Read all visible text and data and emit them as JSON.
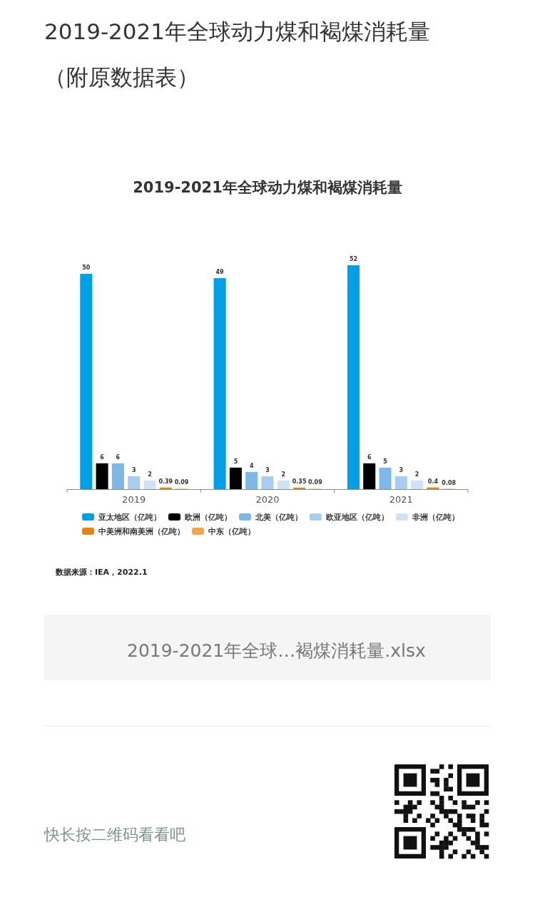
{
  "chart_data": {
    "type": "bar",
    "title": "2019-2021年全球动力煤和褐煤消耗量",
    "categories": [
      "2019",
      "2020",
      "2021"
    ],
    "series": [
      {
        "name": "亚太地区（亿吨）",
        "color": "#00a0e9",
        "values": [
          50,
          49,
          52
        ]
      },
      {
        "name": "欧洲（亿吨）",
        "color": "#000000",
        "values": [
          6,
          5,
          6
        ]
      },
      {
        "name": "北美（亿吨）",
        "color": "#7db8e8",
        "values": [
          6,
          4,
          5
        ]
      },
      {
        "name": "欧亚地区（亿吨）",
        "color": "#a9cdf0",
        "values": [
          3,
          3,
          3
        ]
      },
      {
        "name": "非洲（亿吨）",
        "color": "#cfe2f6",
        "values": [
          2,
          2,
          2
        ]
      },
      {
        "name": "中美洲和南美洲（亿吨）",
        "color": "#e8830f",
        "values": [
          0.39,
          0.35,
          0.4
        ]
      },
      {
        "name": "中东（亿吨）",
        "color": "#f4a648",
        "values": [
          0.09,
          0.09,
          0.08
        ]
      }
    ],
    "data_labels": true,
    "legend": "bottom",
    "annotations": [
      "2019-2021年全球动力煤和褐煤消耗量（附原数据表）",
      "数据来源：IEA，2022.1",
      "2019-2021年全球…褐煤消耗量.xlsx",
      "快长按二维码看看吧"
    ]
  }
}
